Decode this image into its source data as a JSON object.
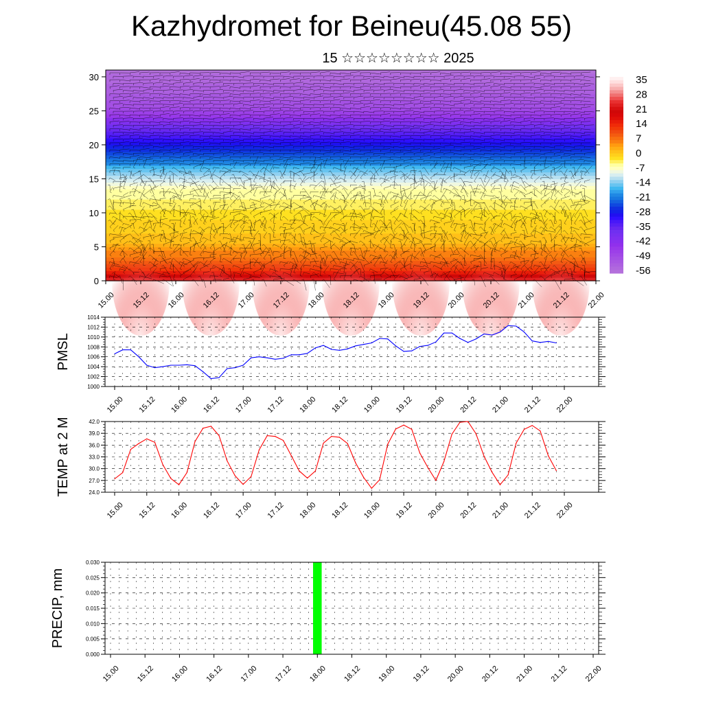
{
  "page": {
    "title": "Kazhydromet for Beineu(45.08 55)",
    "subtitle": "15 ☆☆☆☆☆☆☆☆ 2025"
  },
  "colors": {
    "pmsl_line": "#0000ff",
    "temp_line": "#ff0000",
    "precip_bar": "#00ff00"
  },
  "time_ticks": [
    "15.00",
    "15.12",
    "16.00",
    "16.12",
    "17.00",
    "17.12",
    "18.00",
    "18.12",
    "19.00",
    "19.12",
    "20.00",
    "20.12",
    "21.00",
    "21.12",
    "22.00"
  ],
  "chart_data": [
    {
      "type": "heatmap",
      "name": "vertical-section",
      "x_ticks_hours": [
        0,
        12,
        24,
        36,
        48,
        60,
        72,
        84,
        96,
        108,
        120,
        132,
        144,
        156,
        168
      ],
      "y_ticks": [
        0,
        5,
        10,
        15,
        20,
        25,
        30
      ],
      "ylim": [
        0,
        31
      ],
      "xlim_hours": [
        0,
        168
      ],
      "colorbar_labels": [
        "35",
        "28",
        "21",
        "14",
        "7",
        "0",
        "-7",
        "-14",
        "-21",
        "-28",
        "-35",
        "-42",
        "-49",
        "-56"
      ],
      "colorbar_stops": [
        {
          "v": 35,
          "c": "#fff0f0"
        },
        {
          "v": 28,
          "c": "#f8b0b0"
        },
        {
          "v": 21,
          "c": "#e83030"
        },
        {
          "v": 14,
          "c": "#d81010"
        },
        {
          "v": 7,
          "c": "#f04a10"
        },
        {
          "v": 0,
          "c": "#ff9a10"
        },
        {
          "v": -7,
          "c": "#ffe020"
        },
        {
          "v": -14,
          "c": "#ffffc0"
        },
        {
          "v": -21,
          "c": "#b8e0f0"
        },
        {
          "v": -28,
          "c": "#40b8f0"
        },
        {
          "v": -35,
          "c": "#1878e0"
        },
        {
          "v": -42,
          "c": "#1030e0"
        },
        {
          "v": -49,
          "c": "#3010ff"
        },
        {
          "v": -56,
          "c": "#8030f0"
        }
      ],
      "grid": false
    },
    {
      "type": "line",
      "ylabel": "PMSL",
      "ylim": [
        1000,
        1014
      ],
      "y_ticks": [
        "1000",
        "1002",
        "1004",
        "1006",
        "1008",
        "1010",
        "1012",
        "1014"
      ],
      "x_hours": [
        0,
        3,
        6,
        9,
        12,
        15,
        18,
        21,
        24,
        27,
        30,
        33,
        36,
        39,
        42,
        45,
        48,
        51,
        54,
        57,
        60,
        63,
        66,
        69,
        72,
        75,
        78,
        81,
        84,
        87,
        90,
        93,
        96,
        99,
        102,
        105,
        108,
        111,
        114,
        117,
        120,
        123,
        126,
        129,
        132,
        135,
        138,
        141,
        144,
        147,
        150,
        153,
        156,
        159,
        162,
        165
      ],
      "series": [
        {
          "values": [
            1006.6,
            1007.4,
            1007.4,
            1006.0,
            1004.3,
            1003.8,
            1004.0,
            1004.3,
            1004.3,
            1004.4,
            1004.2,
            1003.0,
            1001.6,
            1001.8,
            1003.6,
            1003.8,
            1004.3,
            1005.8,
            1006.0,
            1005.8,
            1005.5,
            1005.7,
            1006.4,
            1006.4,
            1006.7,
            1007.8,
            1008.3,
            1007.5,
            1007.3,
            1007.6,
            1008.2,
            1008.5,
            1008.8,
            1009.7,
            1009.6,
            1008.2,
            1007.1,
            1007.2,
            1008.1,
            1008.3,
            1009.0,
            1010.8,
            1010.8,
            1009.7,
            1008.9,
            1009.6,
            1010.6,
            1010.4,
            1011.0,
            1012.3,
            1012.2,
            1011.0,
            1009.2,
            1008.9,
            1009.1,
            1008.8
          ]
        }
      ]
    },
    {
      "type": "line",
      "ylabel": "TEMP at 2 M",
      "ylim": [
        24,
        42
      ],
      "y_ticks": [
        "24.0",
        "27.0",
        "30.0",
        "33.0",
        "36.0",
        "39.0",
        "42.0"
      ],
      "x_hours": [
        0,
        3,
        6,
        9,
        12,
        15,
        18,
        21,
        24,
        27,
        30,
        33,
        36,
        39,
        42,
        45,
        48,
        51,
        54,
        57,
        60,
        63,
        66,
        69,
        72,
        75,
        78,
        81,
        84,
        87,
        90,
        93,
        96,
        99,
        102,
        105,
        108,
        111,
        114,
        117,
        120,
        123,
        126,
        129,
        132,
        135,
        138,
        141,
        144,
        147,
        150,
        153,
        156,
        159,
        162,
        165
      ],
      "series": [
        {
          "values": [
            27.4,
            29.0,
            34.9,
            36.4,
            37.6,
            36.7,
            31.0,
            27.5,
            25.9,
            29.0,
            36.9,
            40.3,
            40.8,
            38.4,
            32.0,
            28.2,
            26.0,
            28.0,
            34.8,
            38.4,
            38.2,
            37.2,
            33.3,
            29.4,
            27.6,
            29.4,
            36.5,
            38.2,
            38.0,
            36.4,
            31.5,
            27.8,
            25.0,
            27.2,
            36.2,
            40.1,
            41.1,
            40.0,
            34.0,
            30.3,
            27.0,
            31.8,
            38.8,
            41.8,
            42.0,
            38.9,
            33.2,
            29.1,
            25.9,
            28.4,
            36.5,
            40.0,
            41.0,
            39.6,
            33.3,
            29.5
          ]
        }
      ]
    },
    {
      "type": "bar",
      "ylabel": "PRECIP, mm",
      "ylim": [
        0,
        0.03
      ],
      "y_ticks": [
        "0.000",
        "0.005",
        "0.010",
        "0.015",
        "0.020",
        "0.025",
        "0.030"
      ],
      "bars": [
        {
          "start_hour": 70.5,
          "end_hour": 73.5,
          "value": 0.03
        }
      ]
    }
  ]
}
